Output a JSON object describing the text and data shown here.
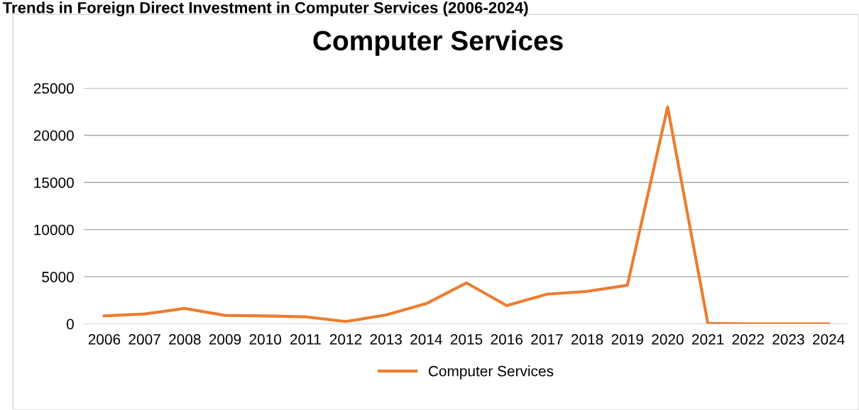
{
  "chart_data": {
    "type": "line",
    "title": "Trends in Foreign Direct Investment in Computer Services (2006-2024)",
    "subtitle": "Computer Services",
    "categories": [
      "2006",
      "2007",
      "2008",
      "2009",
      "2010",
      "2011",
      "2012",
      "2013",
      "2014",
      "2015",
      "2016",
      "2017",
      "2018",
      "2019",
      "2020",
      "2021",
      "2022",
      "2023",
      "2024"
    ],
    "series": [
      {
        "name": "Computer Services",
        "color": "#ed7d31",
        "values": [
          850,
          1050,
          1650,
          900,
          850,
          750,
          250,
          950,
          2150,
          4350,
          1950,
          3150,
          3450,
          4100,
          23000,
          50,
          0,
          0,
          0
        ]
      }
    ],
    "ylim": [
      0,
      25000
    ],
    "yticks": [
      0,
      5000,
      10000,
      15000,
      20000,
      25000
    ],
    "grid": "y",
    "legend": "bottom",
    "marker": "none",
    "line_style": "solid"
  }
}
